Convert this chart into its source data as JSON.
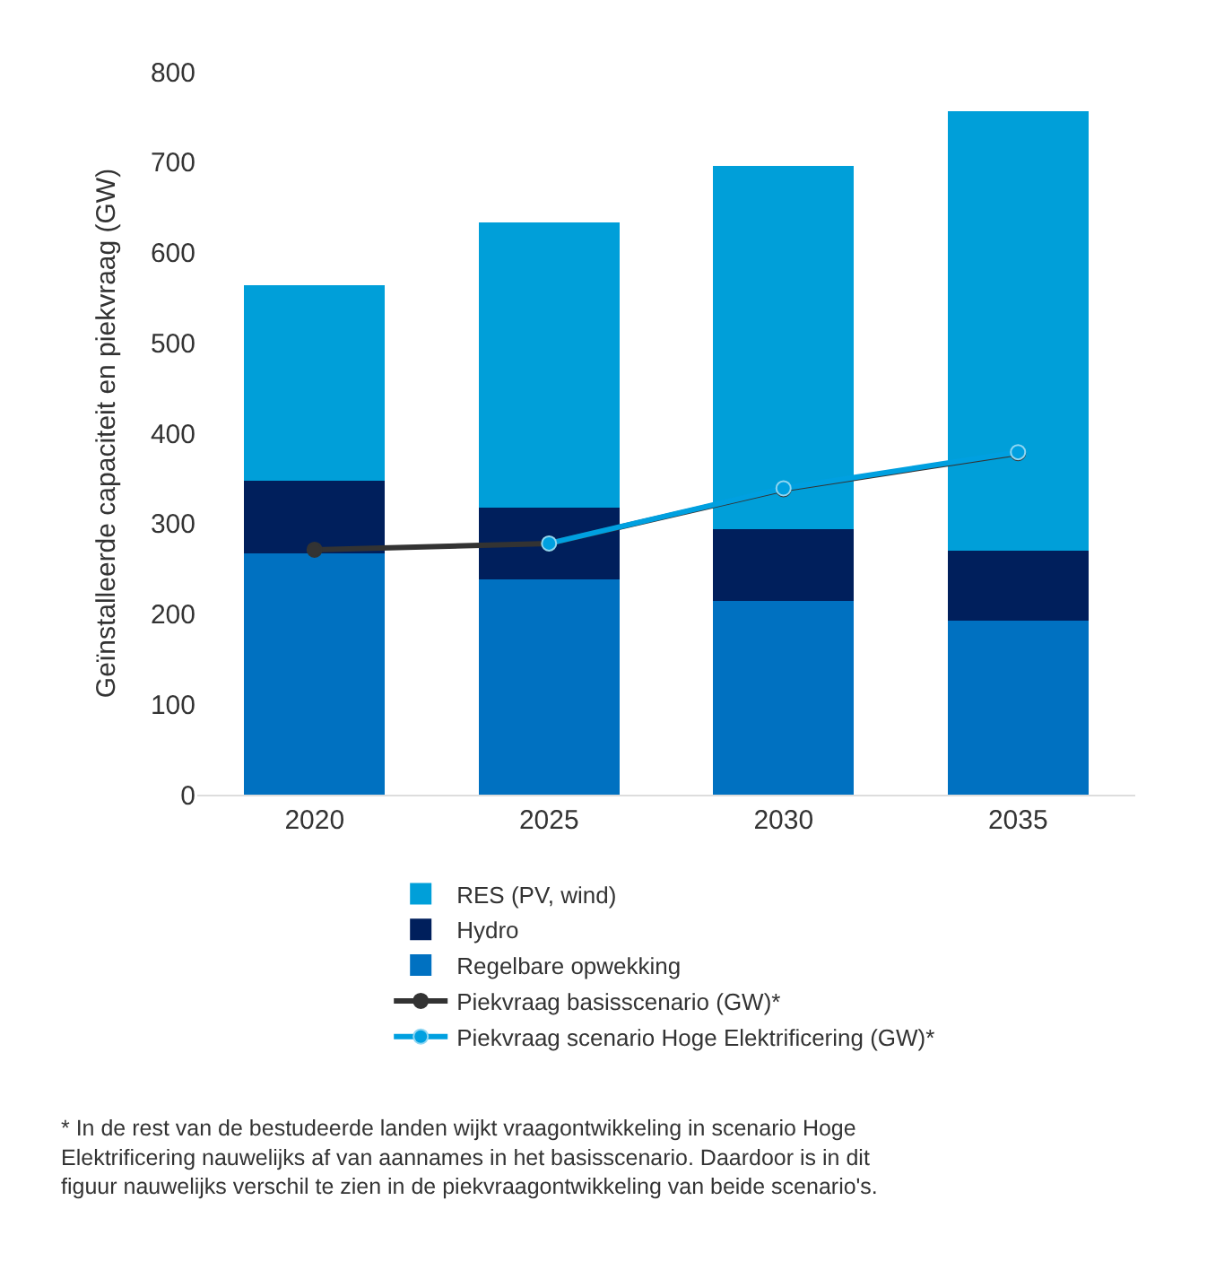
{
  "chart_data": {
    "type": "bar",
    "stacked": true,
    "categories": [
      "2020",
      "2025",
      "2030",
      "2035"
    ],
    "ylabel": "Geïnstalleerde capaciteit en piekvraag (GW)",
    "ylim": [
      0,
      800
    ],
    "yticks": [
      0,
      100,
      200,
      300,
      400,
      500,
      600,
      700,
      800
    ],
    "legend": "bottom",
    "marker": "circle",
    "series": [
      {
        "name": "Regelbare opwekking",
        "color": "#0071c1",
        "values": [
          267,
          238,
          214,
          193
        ]
      },
      {
        "name": "Hydro",
        "color": "#001f5c",
        "values": [
          80,
          80,
          80,
          77
        ]
      },
      {
        "name": "RES (PV, wind)",
        "color": "#009fd9",
        "values": [
          217,
          315,
          402,
          486
        ]
      },
      {
        "name": "Piekvraag basisscenario (GW)*",
        "type": "line",
        "color": "#333333",
        "values": [
          271,
          278,
          338,
          378
        ]
      },
      {
        "name": "Piekvraag scenario Hoge Elektrificering (GW)*",
        "type": "line",
        "color": "#00a0e0",
        "values": [
          null,
          278,
          339,
          379
        ]
      }
    ],
    "annotations": [
      "* In de rest van de bestudeerde landen wijkt vraagontwikkeling in scenario Hoge Elektrificering nauwelijks af van aannames in het basisscenario. Daardoor is in dit figuur nauwelijks verschil te zien in de piekvraagontwikkeling van beide scenario's."
    ]
  }
}
